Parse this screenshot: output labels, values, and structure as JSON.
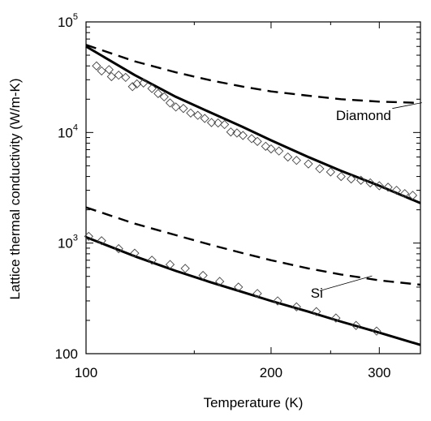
{
  "chart_data": {
    "type": "scatter",
    "title": "",
    "xlabel": "Temperature (K)",
    "ylabel": "Lattice thermal conductivity (W/m-K)",
    "xscale": "log",
    "yscale": "log",
    "xlim": [
      100,
      350
    ],
    "ylim": [
      100,
      100000
    ],
    "grid": false,
    "legend": "none",
    "x_ticks": [
      {
        "value": 100,
        "label": "100"
      },
      {
        "value": 200,
        "label": "200"
      },
      {
        "value": 300,
        "label": "300"
      }
    ],
    "y_ticks": [
      {
        "value": 100,
        "base": "100",
        "exp": ""
      },
      {
        "value": 1000,
        "base": "10",
        "exp": "3"
      },
      {
        "value": 10000,
        "base": "10",
        "exp": "4"
      },
      {
        "value": 100000,
        "base": "10",
        "exp": "5"
      }
    ],
    "annotations": [
      {
        "text": "Diamond",
        "x": 255,
        "y": 13000,
        "pointer": [
          [
            315,
            16500
          ],
          [
            352,
            18600
          ]
        ]
      },
      {
        "text": "Si",
        "x": 232,
        "y": 320,
        "pointer": [
          [
            240,
            370
          ],
          [
            292,
            505
          ]
        ]
      }
    ],
    "series": [
      {
        "style": "solid",
        "x": [
          100,
          120,
          140,
          160,
          180,
          200,
          230,
          260,
          300,
          350
        ],
        "y": [
          60000,
          33000,
          21000,
          15000,
          11200,
          8500,
          6000,
          4500,
          3300,
          2300
        ]
      },
      {
        "style": "dashed",
        "x": [
          100,
          120,
          140,
          160,
          180,
          200,
          230,
          260,
          300,
          350
        ],
        "y": [
          62000,
          44000,
          35000,
          29500,
          26000,
          23500,
          21500,
          20000,
          19000,
          18500
        ]
      },
      {
        "style": "solid",
        "x": [
          100,
          120,
          140,
          160,
          180,
          200,
          230,
          260,
          300,
          350
        ],
        "y": [
          1130,
          760,
          560,
          440,
          360,
          300,
          240,
          195,
          155,
          120
        ]
      },
      {
        "style": "dashed",
        "x": [
          100,
          120,
          140,
          160,
          180,
          200,
          230,
          260,
          300,
          350
        ],
        "y": [
          2100,
          1500,
          1180,
          960,
          810,
          700,
          590,
          520,
          460,
          420
        ]
      },
      {
        "style": "markers",
        "marker": "diamond",
        "x": [
          104,
          106,
          109,
          110,
          113,
          116,
          119,
          121,
          124,
          128,
          131,
          134,
          137,
          140,
          144,
          148,
          152,
          156,
          160,
          164,
          168,
          172,
          176,
          180,
          186,
          190,
          196,
          200,
          206,
          213,
          220,
          230,
          240,
          250,
          260,
          270,
          280,
          290,
          300,
          310,
          320,
          330,
          340
        ],
        "y": [
          40000,
          36000,
          37000,
          32000,
          33000,
          31500,
          26000,
          27500,
          28000,
          25000,
          22500,
          21000,
          18500,
          17000,
          16500,
          15000,
          14300,
          13400,
          12300,
          12200,
          11800,
          10100,
          9900,
          9400,
          8800,
          8300,
          7500,
          7100,
          6800,
          6000,
          5600,
          5200,
          4700,
          4400,
          4000,
          3800,
          3700,
          3500,
          3300,
          3200,
          3000,
          2800,
          2700
        ]
      },
      {
        "style": "markers",
        "marker": "diamond",
        "x": [
          101,
          106,
          113,
          120,
          128,
          137,
          145,
          155,
          165,
          177,
          190,
          205,
          220,
          237,
          255,
          275,
          297
        ],
        "y": [
          1150,
          1050,
          890,
          810,
          700,
          640,
          590,
          510,
          450,
          400,
          350,
          300,
          265,
          240,
          210,
          180,
          160
        ]
      }
    ]
  }
}
